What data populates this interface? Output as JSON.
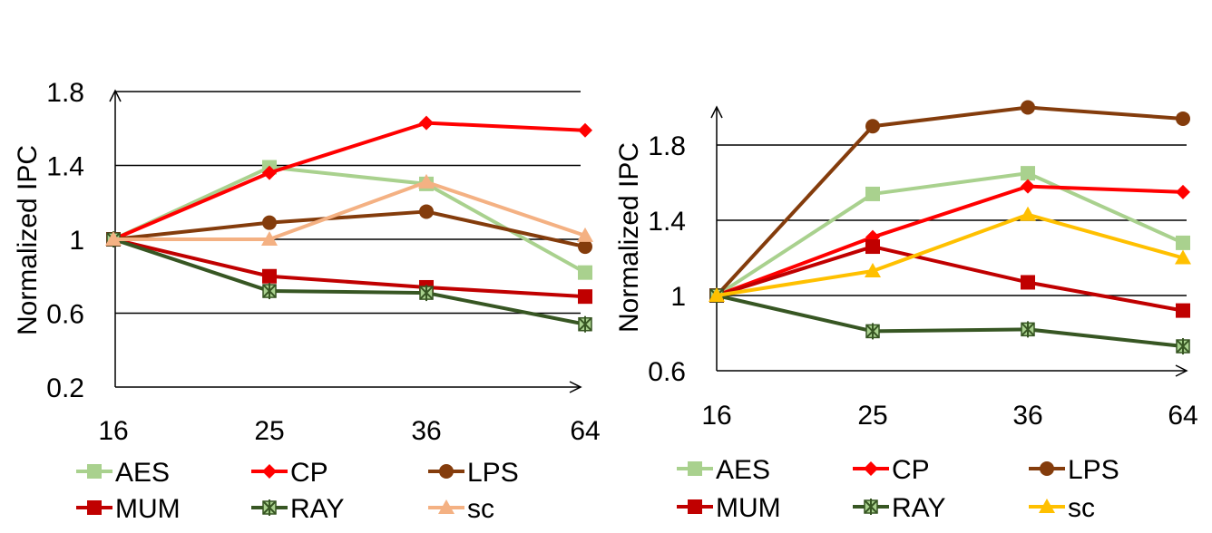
{
  "chart_data": [
    {
      "type": "line",
      "categories": [
        "16",
        "25",
        "36",
        "64"
      ],
      "ylabel": "Normalized IPC",
      "ylim": [
        0.2,
        1.8
      ],
      "yticks": [
        "1.8",
        "1.4",
        "1",
        "0.6",
        "0.2"
      ],
      "ytick_values": [
        1.8,
        1.4,
        1.0,
        0.6,
        0.2
      ],
      "grid": true,
      "legend": "bottom",
      "series": [
        {
          "name": "AES",
          "color": "#a9d18e",
          "marker": "square",
          "values": [
            1.0,
            1.39,
            1.3,
            0.82
          ]
        },
        {
          "name": "CP",
          "color": "#ff0000",
          "marker": "diamond",
          "values": [
            1.0,
            1.36,
            1.63,
            1.59
          ]
        },
        {
          "name": "LPS",
          "color": "#843c0c",
          "marker": "circle",
          "values": [
            1.0,
            1.09,
            1.15,
            0.96
          ]
        },
        {
          "name": "MUM",
          "color": "#c00000",
          "marker": "square",
          "values": [
            1.0,
            0.8,
            0.74,
            0.69
          ]
        },
        {
          "name": "RAY",
          "color": "#375623",
          "marker": "star",
          "values": [
            1.0,
            0.72,
            0.71,
            0.54
          ]
        },
        {
          "name": "sc",
          "color": "#f4b183",
          "marker": "triangle",
          "values": [
            1.0,
            1.0,
            1.31,
            1.02
          ]
        }
      ]
    },
    {
      "type": "line",
      "categories": [
        "16",
        "25",
        "36",
        "64"
      ],
      "ylabel": "Normalized IPC",
      "ylim": [
        0.6,
        2.0
      ],
      "yticks": [
        "1.8",
        "1.4",
        "1",
        "0.6"
      ],
      "ytick_values": [
        1.8,
        1.4,
        1.0,
        0.6
      ],
      "grid": true,
      "legend": "bottom",
      "series": [
        {
          "name": "AES",
          "color": "#a9d18e",
          "marker": "square",
          "values": [
            1.0,
            1.54,
            1.65,
            1.28
          ]
        },
        {
          "name": "CP",
          "color": "#ff0000",
          "marker": "diamond",
          "values": [
            1.0,
            1.31,
            1.58,
            1.55
          ]
        },
        {
          "name": "LPS",
          "color": "#843c0c",
          "marker": "circle",
          "values": [
            1.0,
            1.9,
            2.0,
            1.94
          ]
        },
        {
          "name": "MUM",
          "color": "#c00000",
          "marker": "square",
          "values": [
            1.0,
            1.26,
            1.07,
            0.92
          ]
        },
        {
          "name": "RAY",
          "color": "#375623",
          "marker": "star",
          "values": [
            1.0,
            0.81,
            0.82,
            0.73
          ]
        },
        {
          "name": "sc",
          "color": "#ffc000",
          "marker": "triangle",
          "values": [
            1.0,
            1.13,
            1.43,
            1.2
          ]
        }
      ]
    }
  ]
}
